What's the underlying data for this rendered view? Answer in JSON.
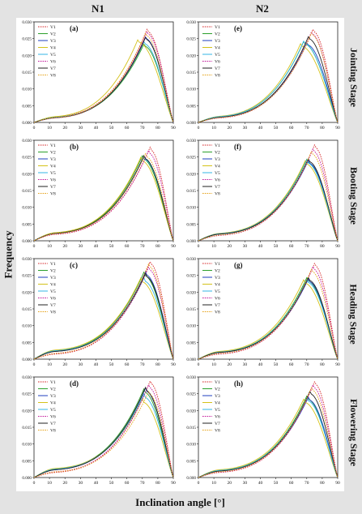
{
  "columns": [
    "N1",
    "N2"
  ],
  "stages": [
    "Jointing Stage",
    "Booting Stage",
    "Heading Stage",
    "Flowering Stage"
  ],
  "ylabel": "Frequency",
  "xlabel": "Inclination angle [°]",
  "chart_data": {
    "type": "line",
    "xlim": [
      0,
      90
    ],
    "ylim": [
      0,
      0.03
    ],
    "xticks": [
      "0",
      "10",
      "20",
      "30",
      "40",
      "50",
      "60",
      "70",
      "80",
      "90"
    ],
    "yticks": [
      "0.000",
      "0.005",
      "0.010",
      "0.015",
      "0.020",
      "0.025",
      "0.030"
    ],
    "legend": {
      "position": "top-left"
    },
    "series_styles": [
      {
        "name": "V1",
        "color": "#d62728",
        "dash": true
      },
      {
        "name": "V2",
        "color": "#2ca02c",
        "dash": false
      },
      {
        "name": "V3",
        "color": "#1f3fbf",
        "dash": false
      },
      {
        "name": "V4",
        "color": "#d4c21a",
        "dash": false
      },
      {
        "name": "V5",
        "color": "#33b5e5",
        "dash": false
      },
      {
        "name": "V6",
        "color": "#c2189b",
        "dash": true
      },
      {
        "name": "V7",
        "color": "#222222",
        "dash": false
      },
      {
        "name": "V8",
        "color": "#e6a31a",
        "dash": true
      }
    ],
    "panels": [
      {
        "label": "(a)",
        "col": 0,
        "row": 0,
        "series": [
          {
            "name": "V1",
            "peak_x": 73,
            "peak_y": 0.0272,
            "low": 0.0015
          },
          {
            "name": "V2",
            "peak_x": 71,
            "peak_y": 0.0228,
            "low": 0.0014
          },
          {
            "name": "V3",
            "peak_x": 72,
            "peak_y": 0.025,
            "low": 0.0013
          },
          {
            "name": "V4",
            "peak_x": 67,
            "peak_y": 0.024,
            "low": 0.0016
          },
          {
            "name": "V5",
            "peak_x": 71,
            "peak_y": 0.0235,
            "low": 0.0014
          },
          {
            "name": "V6",
            "peak_x": 73,
            "peak_y": 0.0265,
            "low": 0.0012
          },
          {
            "name": "V7",
            "peak_x": 72,
            "peak_y": 0.0248,
            "low": 0.0013
          },
          {
            "name": "V8",
            "peak_x": 72,
            "peak_y": 0.026,
            "low": 0.0013
          }
        ]
      },
      {
        "label": "(b)",
        "col": 0,
        "row": 1,
        "series": [
          {
            "name": "V1",
            "peak_x": 75,
            "peak_y": 0.0272,
            "low": 0.0018
          },
          {
            "name": "V2",
            "peak_x": 70,
            "peak_y": 0.0245,
            "low": 0.0022
          },
          {
            "name": "V3",
            "peak_x": 71,
            "peak_y": 0.0245,
            "low": 0.0021
          },
          {
            "name": "V4",
            "peak_x": 69,
            "peak_y": 0.024,
            "low": 0.0023
          },
          {
            "name": "V5",
            "peak_x": 71,
            "peak_y": 0.0243,
            "low": 0.0021
          },
          {
            "name": "V6",
            "peak_x": 74,
            "peak_y": 0.0262,
            "low": 0.0019
          },
          {
            "name": "V7",
            "peak_x": 71,
            "peak_y": 0.0246,
            "low": 0.0021
          },
          {
            "name": "V8",
            "peak_x": 72,
            "peak_y": 0.0252,
            "low": 0.002
          }
        ]
      },
      {
        "label": "(c)",
        "col": 0,
        "row": 2,
        "series": [
          {
            "name": "V1",
            "peak_x": 75,
            "peak_y": 0.0285,
            "low": 0.0014
          },
          {
            "name": "V2",
            "peak_x": 71,
            "peak_y": 0.025,
            "low": 0.0024
          },
          {
            "name": "V3",
            "peak_x": 72,
            "peak_y": 0.0252,
            "low": 0.0022
          },
          {
            "name": "V4",
            "peak_x": 69,
            "peak_y": 0.0232,
            "low": 0.0026
          },
          {
            "name": "V5",
            "peak_x": 71,
            "peak_y": 0.0233,
            "low": 0.0024
          },
          {
            "name": "V6",
            "peak_x": 74,
            "peak_y": 0.0268,
            "low": 0.0016
          },
          {
            "name": "V7",
            "peak_x": 72,
            "peak_y": 0.0247,
            "low": 0.0022
          },
          {
            "name": "V8",
            "peak_x": 74,
            "peak_y": 0.0278,
            "low": 0.0016
          }
        ]
      },
      {
        "label": "(d)",
        "col": 0,
        "row": 3,
        "series": [
          {
            "name": "V1",
            "peak_x": 75,
            "peak_y": 0.0282,
            "low": 0.0014
          },
          {
            "name": "V2",
            "peak_x": 71,
            "peak_y": 0.0255,
            "low": 0.0024
          },
          {
            "name": "V3",
            "peak_x": 72,
            "peak_y": 0.0258,
            "low": 0.0022
          },
          {
            "name": "V4",
            "peak_x": 70,
            "peak_y": 0.0225,
            "low": 0.0026
          },
          {
            "name": "V5",
            "peak_x": 71,
            "peak_y": 0.024,
            "low": 0.0024
          },
          {
            "name": "V6",
            "peak_x": 74,
            "peak_y": 0.027,
            "low": 0.0016
          },
          {
            "name": "V7",
            "peak_x": 72,
            "peak_y": 0.026,
            "low": 0.0022
          },
          {
            "name": "V8",
            "peak_x": 74,
            "peak_y": 0.025,
            "low": 0.0016
          }
        ]
      },
      {
        "label": "(e)",
        "col": 1,
        "row": 0,
        "series": [
          {
            "name": "V1",
            "peak_x": 74,
            "peak_y": 0.0272,
            "low": 0.0013
          },
          {
            "name": "V2",
            "peak_x": 68,
            "peak_y": 0.0235,
            "low": 0.0016
          },
          {
            "name": "V3",
            "peak_x": 70,
            "peak_y": 0.0232,
            "low": 0.0015
          },
          {
            "name": "V4",
            "peak_x": 66,
            "peak_y": 0.0228,
            "low": 0.0017
          },
          {
            "name": "V5",
            "peak_x": 68,
            "peak_y": 0.0236,
            "low": 0.0016
          },
          {
            "name": "V6",
            "peak_x": 73,
            "peak_y": 0.0265,
            "low": 0.0012
          },
          {
            "name": "V7",
            "peak_x": 71,
            "peak_y": 0.025,
            "low": 0.0014
          },
          {
            "name": "V8",
            "peak_x": 73,
            "peak_y": 0.0262,
            "low": 0.0013
          }
        ]
      },
      {
        "label": "(f)",
        "col": 1,
        "row": 1,
        "series": [
          {
            "name": "V1",
            "peak_x": 75,
            "peak_y": 0.028,
            "low": 0.0015
          },
          {
            "name": "V2",
            "peak_x": 70,
            "peak_y": 0.0235,
            "low": 0.002
          },
          {
            "name": "V3",
            "peak_x": 71,
            "peak_y": 0.0232,
            "low": 0.0019
          },
          {
            "name": "V4",
            "peak_x": 69,
            "peak_y": 0.023,
            "low": 0.0021
          },
          {
            "name": "V5",
            "peak_x": 70,
            "peak_y": 0.0233,
            "low": 0.002
          },
          {
            "name": "V6",
            "peak_x": 74,
            "peak_y": 0.0268,
            "low": 0.0015
          },
          {
            "name": "V7",
            "peak_x": 71,
            "peak_y": 0.0237,
            "low": 0.0019
          },
          {
            "name": "V8",
            "peak_x": 73,
            "peak_y": 0.026,
            "low": 0.0016
          }
        ]
      },
      {
        "label": "(g)",
        "col": 1,
        "row": 2,
        "series": [
          {
            "name": "V1",
            "peak_x": 75,
            "peak_y": 0.028,
            "low": 0.0014
          },
          {
            "name": "V2",
            "peak_x": 70,
            "peak_y": 0.0235,
            "low": 0.002
          },
          {
            "name": "V3",
            "peak_x": 71,
            "peak_y": 0.0232,
            "low": 0.0019
          },
          {
            "name": "V4",
            "peak_x": 68,
            "peak_y": 0.0228,
            "low": 0.0022
          },
          {
            "name": "V5",
            "peak_x": 70,
            "peak_y": 0.023,
            "low": 0.002
          },
          {
            "name": "V6",
            "peak_x": 74,
            "peak_y": 0.027,
            "low": 0.0015
          },
          {
            "name": "V7",
            "peak_x": 71,
            "peak_y": 0.0236,
            "low": 0.0019
          },
          {
            "name": "V8",
            "peak_x": 73,
            "peak_y": 0.0262,
            "low": 0.0016
          }
        ]
      },
      {
        "label": "(h)",
        "col": 1,
        "row": 3,
        "series": [
          {
            "name": "V1",
            "peak_x": 75,
            "peak_y": 0.028,
            "low": 0.0014
          },
          {
            "name": "V2",
            "peak_x": 70,
            "peak_y": 0.0235,
            "low": 0.002
          },
          {
            "name": "V3",
            "peak_x": 71,
            "peak_y": 0.0232,
            "low": 0.0019
          },
          {
            "name": "V4",
            "peak_x": 68,
            "peak_y": 0.0225,
            "low": 0.0022
          },
          {
            "name": "V5",
            "peak_x": 70,
            "peak_y": 0.023,
            "low": 0.002
          },
          {
            "name": "V6",
            "peak_x": 74,
            "peak_y": 0.027,
            "low": 0.0015
          },
          {
            "name": "V7",
            "peak_x": 72,
            "peak_y": 0.025,
            "low": 0.0018
          },
          {
            "name": "V8",
            "peak_x": 73,
            "peak_y": 0.0262,
            "low": 0.0016
          }
        ]
      }
    ]
  }
}
